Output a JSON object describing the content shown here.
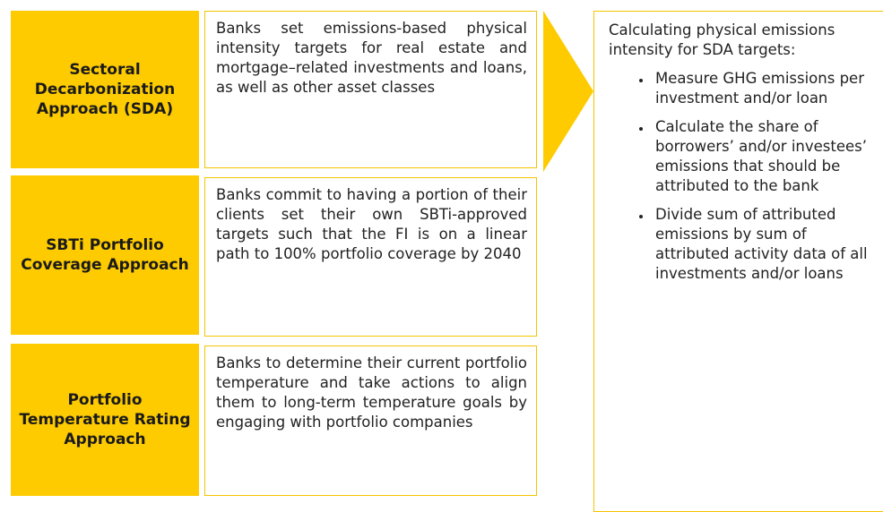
{
  "rows": [
    {
      "label": "Sectoral Decarbonization Approach (SDA)",
      "description": "Banks set emissions-based physical intensity targets for real estate and mortgage–related investments and loans, as well as other asset classes"
    },
    {
      "label": "SBTi Portfolio Coverage Approach",
      "description": "Banks commit to having a portion of their clients set their own SBTi-approved targets such that the FI is on a linear path to 100% portfolio coverage by 2040"
    },
    {
      "label": "Portfolio Temperature Rating Approach",
      "description": "Banks to determine their current portfolio temperature and take actions to align them to long-term temperature goals by engaging with portfolio companies"
    }
  ],
  "panel": {
    "heading": "Calculating physical emissions intensity for SDA targets:",
    "bullets": [
      "Measure GHG emissions per investment and/or loan",
      "Calculate the share of borrowers’ and/or investees’ emissions that should be attributed to the bank",
      "Divide sum of attributed emissions by sum of attributed activity data of all investments and/or loans"
    ]
  }
}
